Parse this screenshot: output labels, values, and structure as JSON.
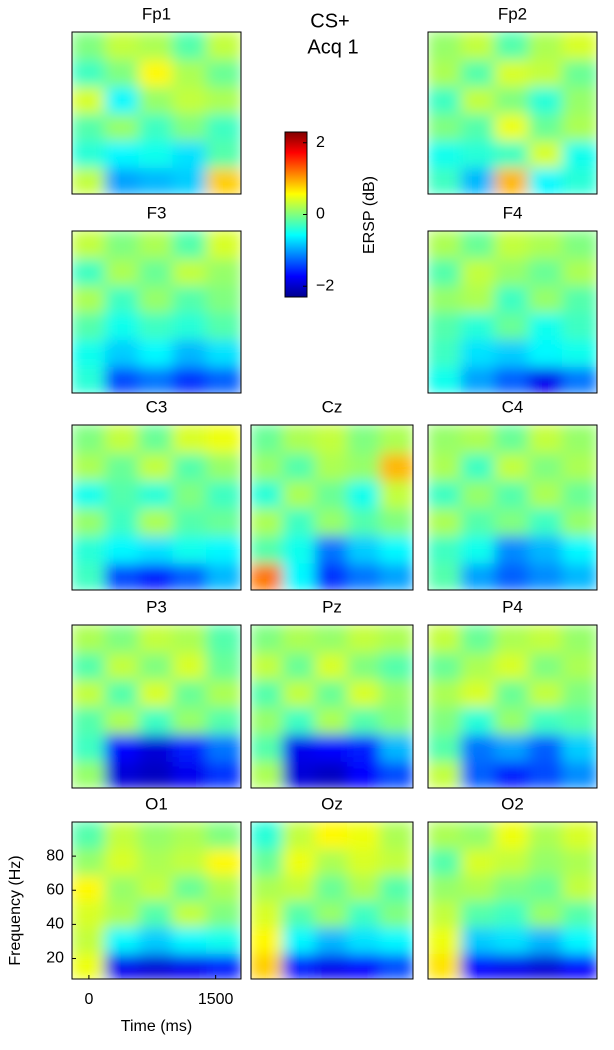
{
  "annotation": [
    "CS+",
    "Acq 1"
  ],
  "colorbar": {
    "label": "ERSP (dB)",
    "clim": [
      -2.3,
      2.3
    ],
    "ticks": [
      {
        "value": -2,
        "label": "−2"
      },
      0,
      2
    ]
  },
  "chart_data": [
    {
      "type": "heatmap",
      "title": "Fp1",
      "z": [
        [
          0.3,
          -1.0,
          -0.9,
          -0.8,
          0.8
        ],
        [
          -0.4,
          -0.6,
          -0.5,
          -0.7,
          -0.2
        ],
        [
          -0.2,
          0.1,
          -0.3,
          0,
          -0.3
        ],
        [
          0.4,
          -0.6,
          0.1,
          0.3,
          0.2
        ],
        [
          -0.3,
          0,
          0.6,
          0.2,
          -0.1
        ],
        [
          0,
          0.3,
          0.2,
          -0.2,
          0.3
        ]
      ]
    },
    {
      "type": "heatmap",
      "title": "Fp2",
      "z": [
        [
          -0.3,
          -0.9,
          0.9,
          -0.6,
          -0.4
        ],
        [
          -0.5,
          -0.4,
          -0.3,
          0.4,
          -0.5
        ],
        [
          0,
          -0.2,
          0.5,
          -0.1,
          0.2
        ],
        [
          -0.3,
          0.3,
          0,
          -0.4,
          0.1
        ],
        [
          0.2,
          -0.2,
          0.4,
          0.3,
          -0.1
        ],
        [
          0.1,
          0.3,
          -0.2,
          0.2,
          0.4
        ]
      ]
    },
    {
      "type": "heatmap",
      "title": "F3",
      "z": [
        [
          -0.4,
          -1.4,
          -1.2,
          -1.5,
          -1.3
        ],
        [
          -0.5,
          -0.8,
          -0.6,
          -0.9,
          -0.7
        ],
        [
          -0.2,
          -0.5,
          -0.3,
          -0.4,
          -0.2
        ],
        [
          0.2,
          -0.3,
          0.1,
          -0.2,
          0
        ],
        [
          -0.3,
          0.2,
          -0.1,
          0.3,
          0.1
        ],
        [
          0.3,
          0,
          0.2,
          -0.2,
          0.4
        ]
      ]
    },
    {
      "type": "heatmap",
      "title": "F4",
      "z": [
        [
          -0.5,
          -1.0,
          -1.3,
          -1.8,
          -1.2
        ],
        [
          -0.3,
          -0.7,
          -0.8,
          -0.6,
          -0.5
        ],
        [
          -0.2,
          -0.4,
          -0.1,
          -0.5,
          -0.3
        ],
        [
          0.1,
          0.2,
          -0.3,
          0.1,
          -0.2
        ],
        [
          -0.2,
          0.3,
          0.1,
          -0.1,
          0.2
        ],
        [
          0.2,
          -0.1,
          0.3,
          0.2,
          0
        ]
      ]
    },
    {
      "type": "heatmap",
      "title": "C3",
      "z": [
        [
          -0.3,
          -1.4,
          -1.6,
          -1.3,
          -0.9
        ],
        [
          -0.4,
          -0.6,
          -0.7,
          -0.5,
          -0.6
        ],
        [
          0.1,
          -0.3,
          0.2,
          -0.2,
          -0.1
        ],
        [
          -0.5,
          -0.2,
          -0.4,
          0,
          -0.3
        ],
        [
          0.2,
          -0.1,
          0.3,
          -0.2,
          0.1
        ],
        [
          0,
          0.3,
          -0.1,
          0.4,
          0.5
        ]
      ]
    },
    {
      "type": "heatmap",
      "title": "Cz",
      "z": [
        [
          1.2,
          -0.6,
          -1.5,
          -1.2,
          -1.0
        ],
        [
          -0.2,
          -0.5,
          -1.2,
          -0.8,
          -0.6
        ],
        [
          0.2,
          -0.3,
          0.1,
          -0.2,
          0
        ],
        [
          -0.4,
          0.2,
          -0.1,
          -0.5,
          0.3
        ],
        [
          0.1,
          -0.2,
          0.2,
          0.1,
          0.9
        ],
        [
          -0.1,
          0.2,
          0.3,
          0,
          0.2
        ]
      ]
    },
    {
      "type": "heatmap",
      "title": "C4",
      "z": [
        [
          -0.2,
          -1.0,
          -1.3,
          -1.1,
          -0.9
        ],
        [
          -0.3,
          -0.5,
          -1.1,
          -0.9,
          -0.6
        ],
        [
          0.2,
          -0.2,
          0,
          -0.3,
          0.1
        ],
        [
          -0.3,
          0.1,
          -0.2,
          0.2,
          -0.1
        ],
        [
          0.2,
          -0.3,
          0.3,
          0,
          0.2
        ],
        [
          0.1,
          0.2,
          -0.1,
          0.3,
          0.1
        ]
      ]
    },
    {
      "type": "heatmap",
      "title": "P3",
      "z": [
        [
          0.1,
          -1.9,
          -2.0,
          -1.8,
          -1.5
        ],
        [
          -0.3,
          -1.7,
          -1.9,
          -1.6,
          -1.2
        ],
        [
          -0.2,
          0.2,
          -0.3,
          0.1,
          -0.2
        ],
        [
          0.3,
          -0.2,
          0.4,
          -0.1,
          0.2
        ],
        [
          -0.2,
          0.3,
          0,
          0.4,
          -0.1
        ],
        [
          0.2,
          0,
          0.3,
          0.2,
          -0.2
        ]
      ]
    },
    {
      "type": "heatmap",
      "title": "Pz",
      "z": [
        [
          0.2,
          -1.9,
          -2.0,
          -1.7,
          -1.4
        ],
        [
          -0.2,
          -1.8,
          -1.7,
          -1.6,
          -0.9
        ],
        [
          0.1,
          -0.3,
          0.2,
          -0.2,
          0
        ],
        [
          -0.2,
          0.3,
          -0.1,
          0.4,
          0.1
        ],
        [
          0.3,
          -0.1,
          0.4,
          0,
          -0.2
        ],
        [
          0,
          0.2,
          0.1,
          0.3,
          0.2
        ]
      ]
    },
    {
      "type": "heatmap",
      "title": "P4",
      "z": [
        [
          0.3,
          -1.3,
          -1.6,
          -1.4,
          -1.1
        ],
        [
          -0.2,
          -1.2,
          -1.0,
          -1.3,
          -0.8
        ],
        [
          0,
          -0.4,
          0.1,
          -0.3,
          -0.2
        ],
        [
          0.2,
          0.4,
          -0.1,
          0.3,
          0
        ],
        [
          -0.1,
          0.2,
          0.4,
          0,
          0.2
        ],
        [
          0.3,
          -0.1,
          0.2,
          0.3,
          0.1
        ]
      ]
    },
    {
      "type": "heatmap",
      "title": "O1",
      "xlabel": "Time (ms)",
      "ylabel": "Frequency (Hz)",
      "xlim": [
        -200,
        1800
      ],
      "ylim": [
        8,
        100
      ],
      "xticks": [
        0,
        1500
      ],
      "yticks": [
        20,
        40,
        60,
        80
      ],
      "z": [
        [
          0.5,
          -1.8,
          -1.9,
          -1.8,
          -1.6
        ],
        [
          0.3,
          -0.6,
          -0.8,
          -0.6,
          -0.5
        ],
        [
          0.4,
          0.2,
          -0.2,
          0.3,
          0
        ],
        [
          0.6,
          0.1,
          0.3,
          -0.1,
          0.2
        ],
        [
          0.1,
          0.4,
          0.2,
          0.3,
          0.6
        ],
        [
          -0.2,
          0.3,
          0.1,
          0.2,
          0
        ]
      ]
    },
    {
      "type": "heatmap",
      "title": "Oz",
      "z": [
        [
          0.8,
          -1.6,
          -1.8,
          -1.7,
          -1.4
        ],
        [
          0.6,
          -0.6,
          -0.9,
          -0.7,
          -0.6
        ],
        [
          0.4,
          -0.2,
          0.1,
          -0.3,
          0
        ],
        [
          0.2,
          0.3,
          -0.1,
          0.2,
          -0.2
        ],
        [
          -0.1,
          0.5,
          0.2,
          0.4,
          0.3
        ],
        [
          -0.4,
          0.3,
          0.6,
          0.5,
          0.2
        ]
      ]
    },
    {
      "type": "heatmap",
      "title": "O2",
      "z": [
        [
          0.7,
          -1.7,
          -1.8,
          -1.9,
          -1.7
        ],
        [
          0.5,
          -0.8,
          -0.7,
          -0.9,
          -0.6
        ],
        [
          0.3,
          -0.2,
          -0.3,
          0.1,
          -0.2
        ],
        [
          0.1,
          0.2,
          0,
          -0.1,
          0.3
        ],
        [
          -0.2,
          0.4,
          0.3,
          0.1,
          0.2
        ],
        [
          0.2,
          0.1,
          0.5,
          0.2,
          0.4
        ]
      ]
    }
  ]
}
